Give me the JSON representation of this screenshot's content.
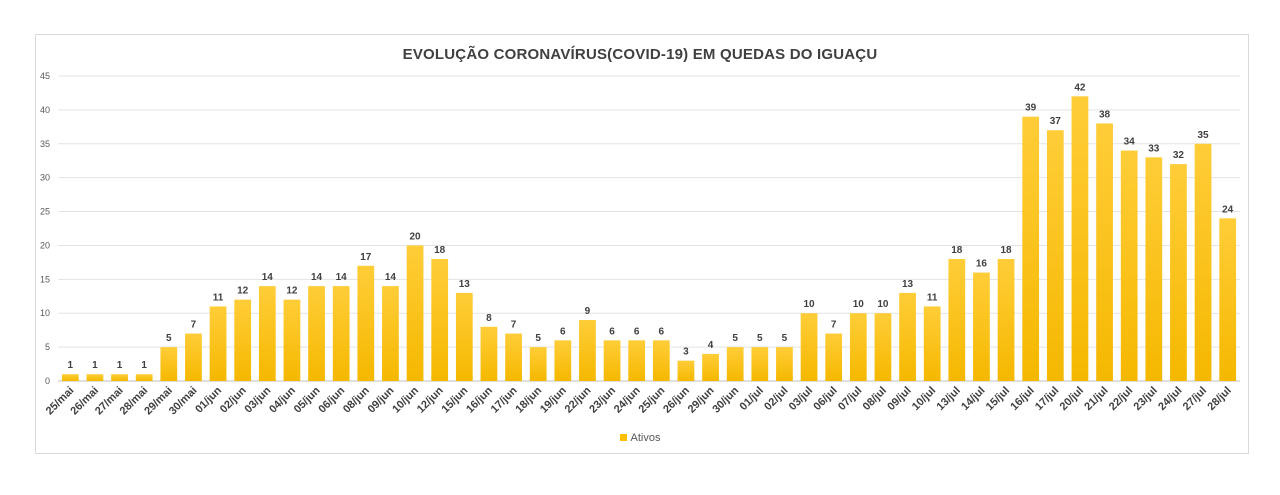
{
  "chart_data": {
    "type": "bar",
    "title": "EVOLUÇÃO CORONAVÍRUS(COVID-19) EM QUEDAS DO IGUAÇU",
    "xlabel": "",
    "ylabel": "",
    "ylim": [
      0,
      45
    ],
    "yticks": [
      0,
      5,
      10,
      15,
      20,
      25,
      30,
      35,
      40,
      45
    ],
    "grid": true,
    "legend_position": "bottom",
    "categories": [
      "25/mai",
      "26/mai",
      "27/mai",
      "28/mai",
      "29/mai",
      "30/mai",
      "01/jun",
      "02/jun",
      "03/jun",
      "04/jun",
      "05/jun",
      "06/jun",
      "08/jun",
      "09/jun",
      "10/jun",
      "12/jun",
      "15/jun",
      "16/jun",
      "17/jun",
      "18/jun",
      "19/jun",
      "22/jun",
      "23/jun",
      "24/jun",
      "25/jun",
      "26/jun",
      "29/jun",
      "30/jun",
      "01/jul",
      "02/jul",
      "03/jul",
      "06/jul",
      "07/jul",
      "08/jul",
      "09/jul",
      "10/jul",
      "13/jul",
      "14/jul",
      "15/jul",
      "16/jul",
      "17/jul",
      "20/jul",
      "21/jul",
      "22/jul",
      "23/jul",
      "24/jul",
      "27/jul",
      "28/jul"
    ],
    "series": [
      {
        "name": "Ativos",
        "color": "#FFC000",
        "values": [
          1,
          1,
          1,
          1,
          5,
          7,
          11,
          12,
          14,
          12,
          14,
          14,
          17,
          14,
          20,
          18,
          13,
          8,
          7,
          5,
          6,
          9,
          6,
          6,
          6,
          3,
          4,
          5,
          5,
          5,
          10,
          7,
          10,
          10,
          13,
          11,
          18,
          16,
          18,
          39,
          37,
          42,
          38,
          34,
          33,
          32,
          35,
          24
        ]
      }
    ]
  }
}
